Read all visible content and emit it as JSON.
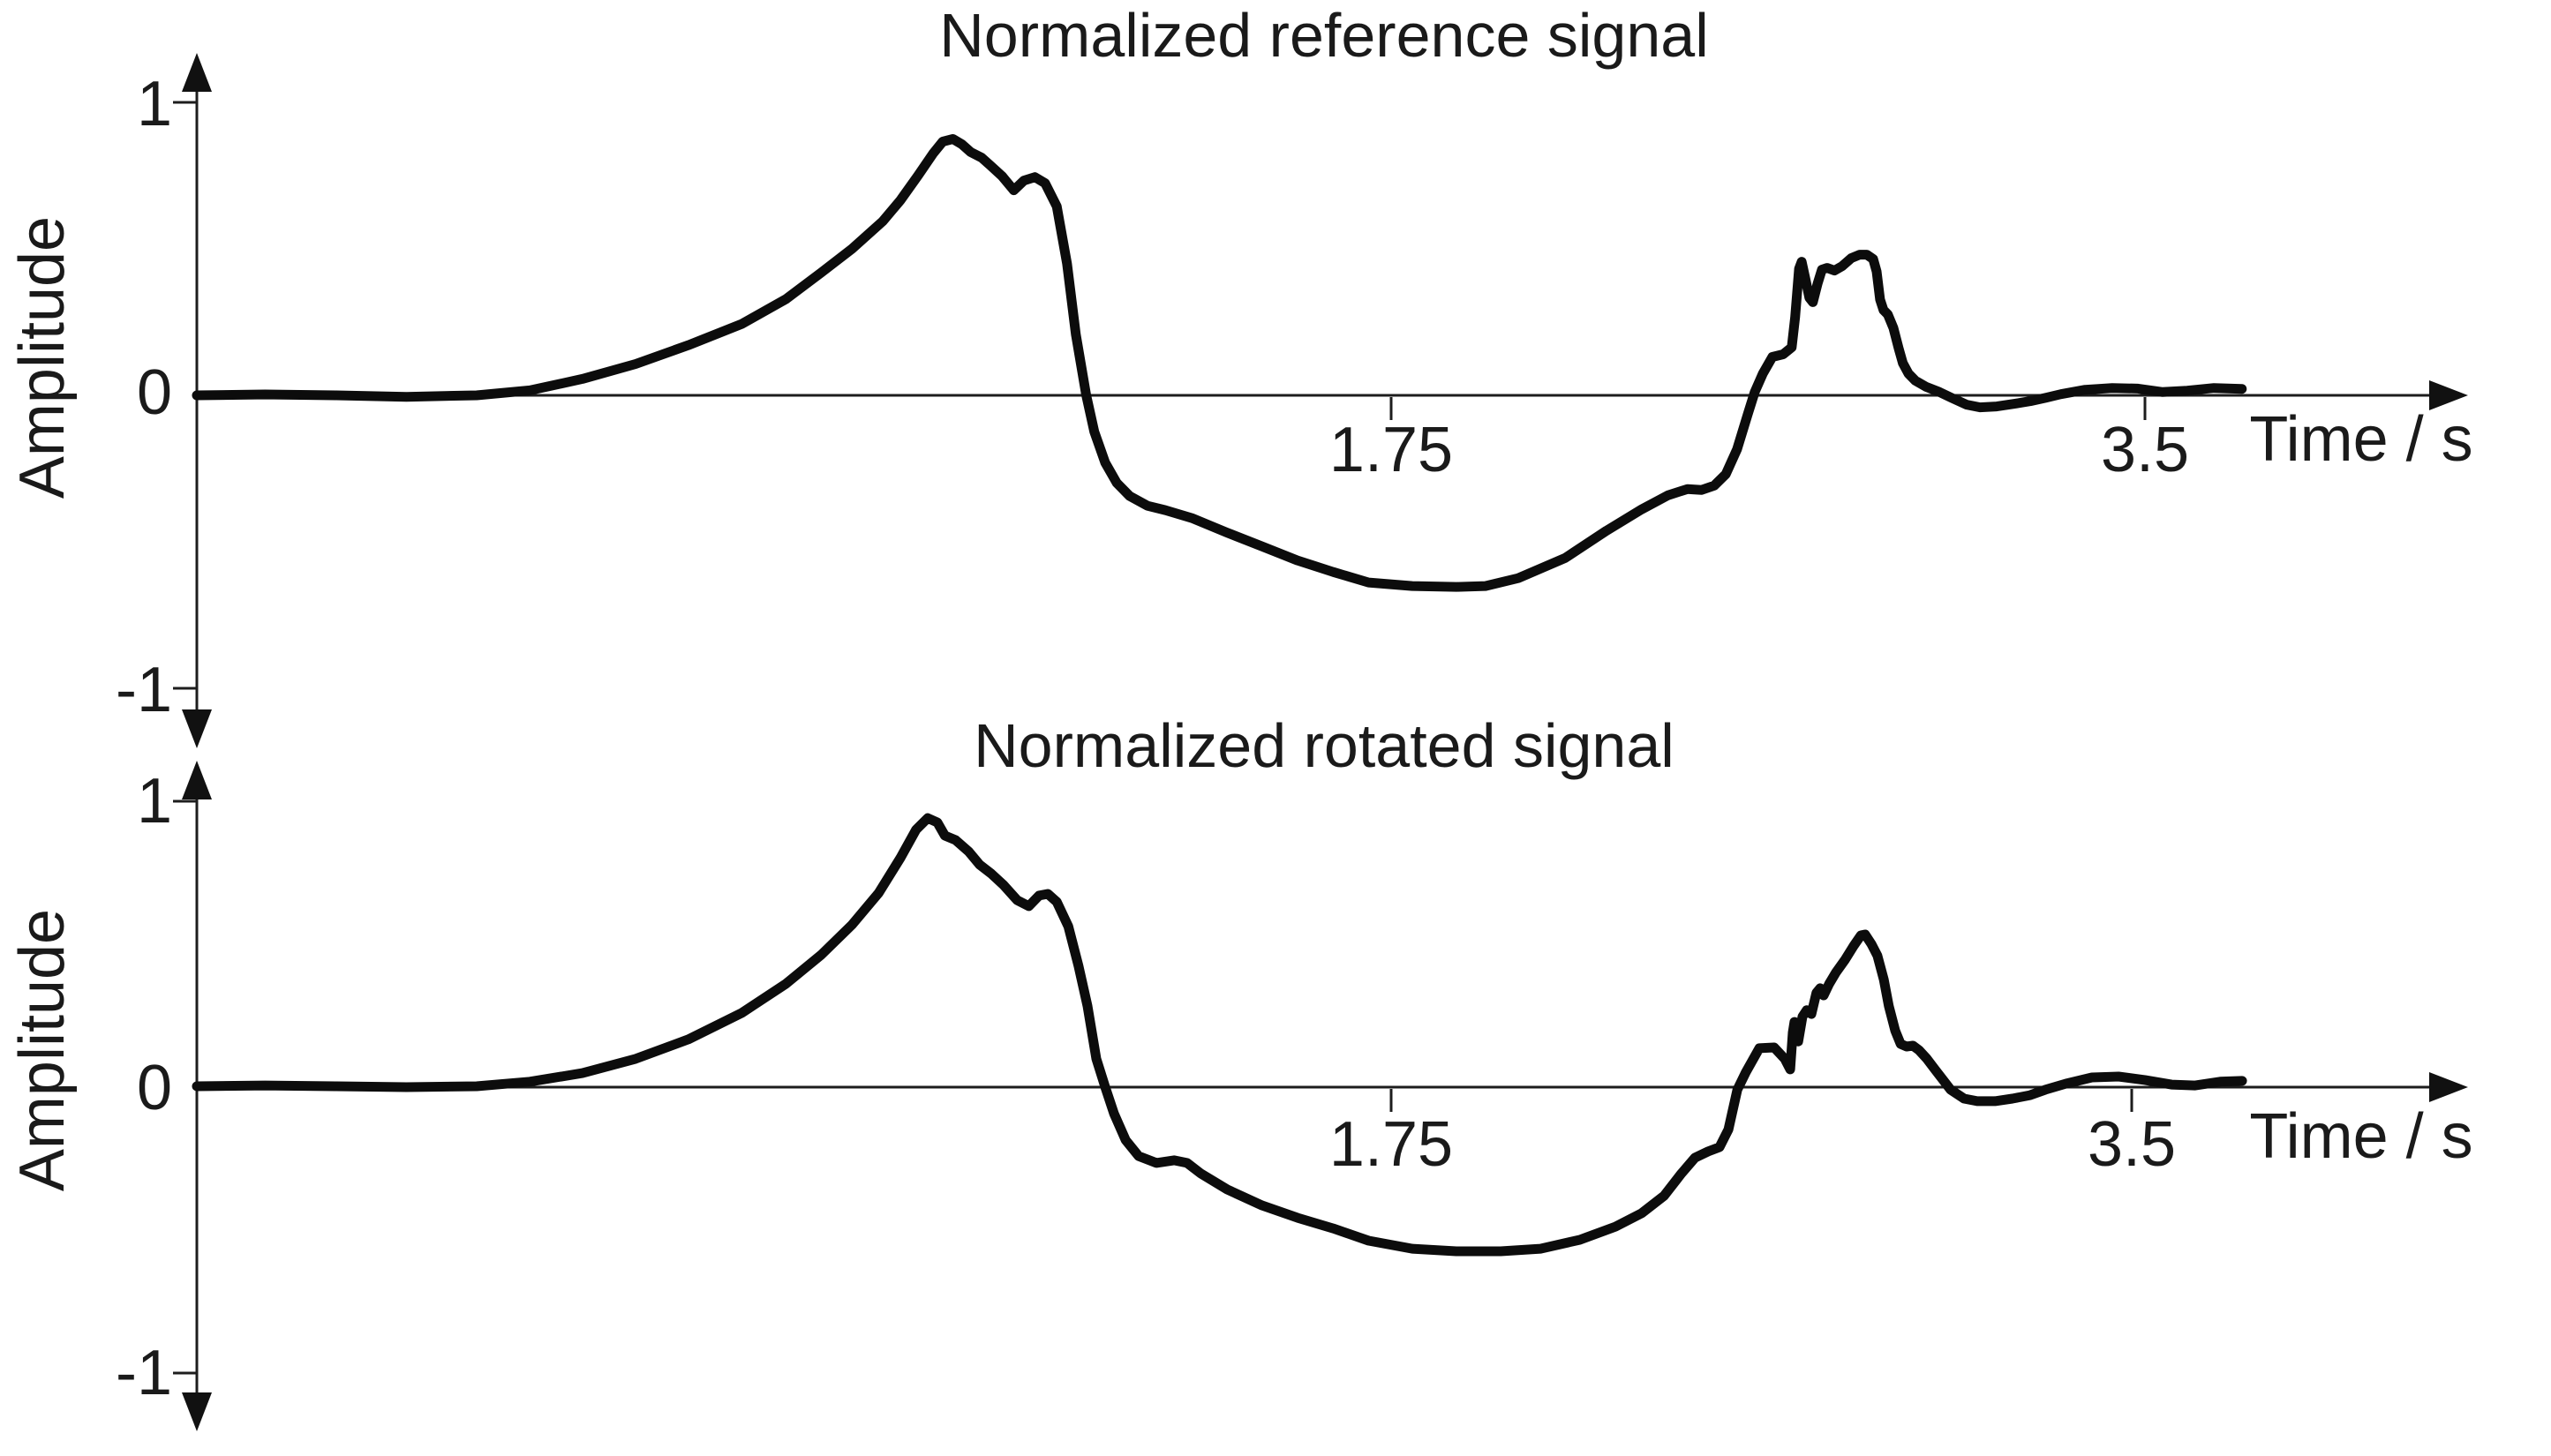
{
  "colors": {
    "line": "#0c0c0c",
    "text": "#1a1a1a",
    "axis": "#1d1d1d",
    "background": "#ffffff"
  },
  "chart_data": [
    {
      "type": "line",
      "title": "Normalized reference signal",
      "xlabel": "Time / s",
      "ylabel": "Amplitude",
      "x_ticks": [
        1.75,
        3.5
      ],
      "x_tick_labels": [
        "1.75",
        "3.5"
      ],
      "y_ticks": [
        1,
        0,
        -1
      ],
      "y_tick_labels": [
        "1",
        "0",
        "-1"
      ],
      "xlim": [
        0,
        4.2
      ],
      "ylim": [
        -1,
        1
      ],
      "grid": false,
      "series": [
        {
          "name": "reference",
          "points": [
            [
              0.0,
              0.0
            ],
            [
              0.1,
              0.003
            ],
            [
              0.203,
              0.0
            ],
            [
              0.307,
              -0.005
            ],
            [
              0.41,
              0.0
            ],
            [
              0.488,
              0.017
            ],
            [
              0.565,
              0.056
            ],
            [
              0.643,
              0.107
            ],
            [
              0.72,
              0.171
            ],
            [
              0.798,
              0.243
            ],
            [
              0.863,
              0.328
            ],
            [
              0.915,
              0.419
            ],
            [
              0.96,
              0.5
            ],
            [
              1.005,
              0.594
            ],
            [
              1.031,
              0.666
            ],
            [
              1.057,
              0.751
            ],
            [
              1.079,
              0.826
            ],
            [
              1.093,
              0.866
            ],
            [
              1.108,
              0.875
            ],
            [
              1.121,
              0.857
            ],
            [
              1.134,
              0.83
            ],
            [
              1.15,
              0.811
            ],
            [
              1.163,
              0.784
            ],
            [
              1.18,
              0.748
            ],
            [
              1.197,
              0.7
            ],
            [
              1.212,
              0.733
            ],
            [
              1.228,
              0.745
            ],
            [
              1.243,
              0.724
            ],
            [
              1.26,
              0.645
            ],
            [
              1.275,
              0.45
            ],
            [
              1.288,
              0.208
            ],
            [
              1.303,
              0.003
            ],
            [
              1.315,
              -0.124
            ],
            [
              1.331,
              -0.23
            ],
            [
              1.348,
              -0.299
            ],
            [
              1.367,
              -0.344
            ],
            [
              1.393,
              -0.377
            ],
            [
              1.419,
              -0.392
            ],
            [
              1.458,
              -0.419
            ],
            [
              1.509,
              -0.468
            ],
            [
              1.561,
              -0.516
            ],
            [
              1.613,
              -0.564
            ],
            [
              1.665,
              -0.603
            ],
            [
              1.717,
              -0.639
            ],
            [
              1.799,
              -0.651
            ],
            [
              1.902,
              -0.654
            ],
            [
              1.969,
              -0.651
            ],
            [
              2.045,
              -0.624
            ],
            [
              2.154,
              -0.555
            ],
            [
              2.25,
              -0.462
            ],
            [
              2.332,
              -0.389
            ],
            [
              2.393,
              -0.341
            ],
            [
              2.438,
              -0.32
            ],
            [
              2.471,
              -0.323
            ],
            [
              2.5,
              -0.308
            ],
            [
              2.527,
              -0.269
            ],
            [
              2.553,
              -0.184
            ],
            [
              2.578,
              -0.064
            ],
            [
              2.594,
              0.011
            ],
            [
              2.613,
              0.074
            ],
            [
              2.635,
              0.131
            ],
            [
              2.66,
              0.14
            ],
            [
              2.68,
              0.164
            ],
            [
              2.688,
              0.267
            ],
            [
              2.697,
              0.432
            ],
            [
              2.703,
              0.456
            ],
            [
              2.711,
              0.402
            ],
            [
              2.721,
              0.333
            ],
            [
              2.729,
              0.318
            ],
            [
              2.74,
              0.381
            ],
            [
              2.75,
              0.429
            ],
            [
              2.762,
              0.435
            ],
            [
              2.779,
              0.426
            ],
            [
              2.797,
              0.441
            ],
            [
              2.818,
              0.468
            ],
            [
              2.838,
              0.48
            ],
            [
              2.854,
              0.48
            ],
            [
              2.869,
              0.465
            ],
            [
              2.877,
              0.423
            ],
            [
              2.885,
              0.327
            ],
            [
              2.893,
              0.291
            ],
            [
              2.903,
              0.276
            ],
            [
              2.916,
              0.23
            ],
            [
              2.928,
              0.161
            ],
            [
              2.938,
              0.11
            ],
            [
              2.951,
              0.074
            ],
            [
              2.967,
              0.05
            ],
            [
              2.992,
              0.029
            ],
            [
              3.023,
              0.011
            ],
            [
              3.053,
              -0.01
            ],
            [
              3.086,
              -0.032
            ],
            [
              3.117,
              -0.041
            ],
            [
              3.156,
              -0.038
            ],
            [
              3.197,
              -0.029
            ],
            [
              3.234,
              -0.02
            ],
            [
              3.27,
              -0.008
            ],
            [
              3.305,
              0.004
            ],
            [
              3.361,
              0.019
            ],
            [
              3.424,
              0.025
            ],
            [
              3.484,
              0.023
            ],
            [
              3.541,
              0.011
            ],
            [
              3.598,
              0.016
            ],
            [
              3.66,
              0.025
            ],
            [
              3.725,
              0.022
            ]
          ]
        }
      ]
    },
    {
      "type": "line",
      "title": "Normalized rotated signal",
      "xlabel": "Time / s",
      "ylabel": "Amplitude",
      "x_ticks": [
        1.75,
        3.5
      ],
      "x_tick_labels": [
        "1.75",
        "3.5"
      ],
      "y_ticks": [
        1,
        0,
        -1
      ],
      "y_tick_labels": [
        "1",
        "0",
        "-1"
      ],
      "xlim": [
        0,
        4.2
      ],
      "ylim": [
        -1,
        1
      ],
      "grid": false,
      "series": [
        {
          "name": "rotated",
          "points": [
            [
              0.0,
              0.003
            ],
            [
              0.1,
              0.006
            ],
            [
              0.203,
              0.003
            ],
            [
              0.307,
              0.0
            ],
            [
              0.41,
              0.003
            ],
            [
              0.488,
              0.019
            ],
            [
              0.565,
              0.049
            ],
            [
              0.643,
              0.099
            ],
            [
              0.72,
              0.167
            ],
            [
              0.798,
              0.259
            ],
            [
              0.863,
              0.361
            ],
            [
              0.915,
              0.463
            ],
            [
              0.96,
              0.568
            ],
            [
              0.999,
              0.679
            ],
            [
              1.031,
              0.802
            ],
            [
              1.054,
              0.901
            ],
            [
              1.071,
              0.941
            ],
            [
              1.085,
              0.926
            ],
            [
              1.096,
              0.88
            ],
            [
              1.112,
              0.864
            ],
            [
              1.131,
              0.824
            ],
            [
              1.147,
              0.778
            ],
            [
              1.164,
              0.747
            ],
            [
              1.182,
              0.707
            ],
            [
              1.202,
              0.654
            ],
            [
              1.219,
              0.633
            ],
            [
              1.234,
              0.67
            ],
            [
              1.247,
              0.676
            ],
            [
              1.26,
              0.648
            ],
            [
              1.277,
              0.562
            ],
            [
              1.292,
              0.423
            ],
            [
              1.305,
              0.284
            ],
            [
              1.318,
              0.099
            ],
            [
              1.331,
              0.0
            ],
            [
              1.344,
              -0.093
            ],
            [
              1.361,
              -0.185
            ],
            [
              1.38,
              -0.241
            ],
            [
              1.406,
              -0.265
            ],
            [
              1.432,
              -0.256
            ],
            [
              1.451,
              -0.265
            ],
            [
              1.471,
              -0.302
            ],
            [
              1.51,
              -0.358
            ],
            [
              1.561,
              -0.414
            ],
            [
              1.613,
              -0.457
            ],
            [
              1.665,
              -0.494
            ],
            [
              1.717,
              -0.537
            ],
            [
              1.8,
              -0.565
            ],
            [
              1.904,
              -0.574
            ],
            [
              2.009,
              -0.574
            ],
            [
              2.103,
              -0.565
            ],
            [
              2.196,
              -0.534
            ],
            [
              2.28,
              -0.488
            ],
            [
              2.342,
              -0.441
            ],
            [
              2.395,
              -0.38
            ],
            [
              2.436,
              -0.302
            ],
            [
              2.468,
              -0.247
            ],
            [
              2.499,
              -0.225
            ],
            [
              2.526,
              -0.21
            ],
            [
              2.547,
              -0.148
            ],
            [
              2.568,
              -0.009
            ],
            [
              2.588,
              0.052
            ],
            [
              2.62,
              0.136
            ],
            [
              2.655,
              0.139
            ],
            [
              2.68,
              0.099
            ],
            [
              2.693,
              0.062
            ],
            [
              2.699,
              0.191
            ],
            [
              2.703,
              0.228
            ],
            [
              2.712,
              0.16
            ],
            [
              2.722,
              0.247
            ],
            [
              2.732,
              0.269
            ],
            [
              2.743,
              0.256
            ],
            [
              2.755,
              0.33
            ],
            [
              2.764,
              0.346
            ],
            [
              2.772,
              0.321
            ],
            [
              2.785,
              0.361
            ],
            [
              2.801,
              0.401
            ],
            [
              2.822,
              0.444
            ],
            [
              2.843,
              0.494
            ],
            [
              2.86,
              0.531
            ],
            [
              2.87,
              0.534
            ],
            [
              2.885,
              0.5
            ],
            [
              2.899,
              0.46
            ],
            [
              2.914,
              0.377
            ],
            [
              2.926,
              0.284
            ],
            [
              2.941,
              0.198
            ],
            [
              2.954,
              0.151
            ],
            [
              2.968,
              0.142
            ],
            [
              2.983,
              0.145
            ],
            [
              2.997,
              0.13
            ],
            [
              3.016,
              0.099
            ],
            [
              3.035,
              0.062
            ],
            [
              3.056,
              0.022
            ],
            [
              3.072,
              -0.009
            ],
            [
              3.104,
              -0.04
            ],
            [
              3.135,
              -0.049
            ],
            [
              3.177,
              -0.049
            ],
            [
              3.218,
              -0.04
            ],
            [
              3.26,
              -0.028
            ],
            [
              3.296,
              -0.009
            ],
            [
              3.344,
              0.012
            ],
            [
              3.406,
              0.034
            ],
            [
              3.469,
              0.037
            ],
            [
              3.531,
              0.025
            ],
            [
              3.594,
              0.009
            ],
            [
              3.65,
              0.006
            ],
            [
              3.709,
              0.019
            ],
            [
              3.761,
              0.022
            ]
          ]
        }
      ]
    }
  ]
}
